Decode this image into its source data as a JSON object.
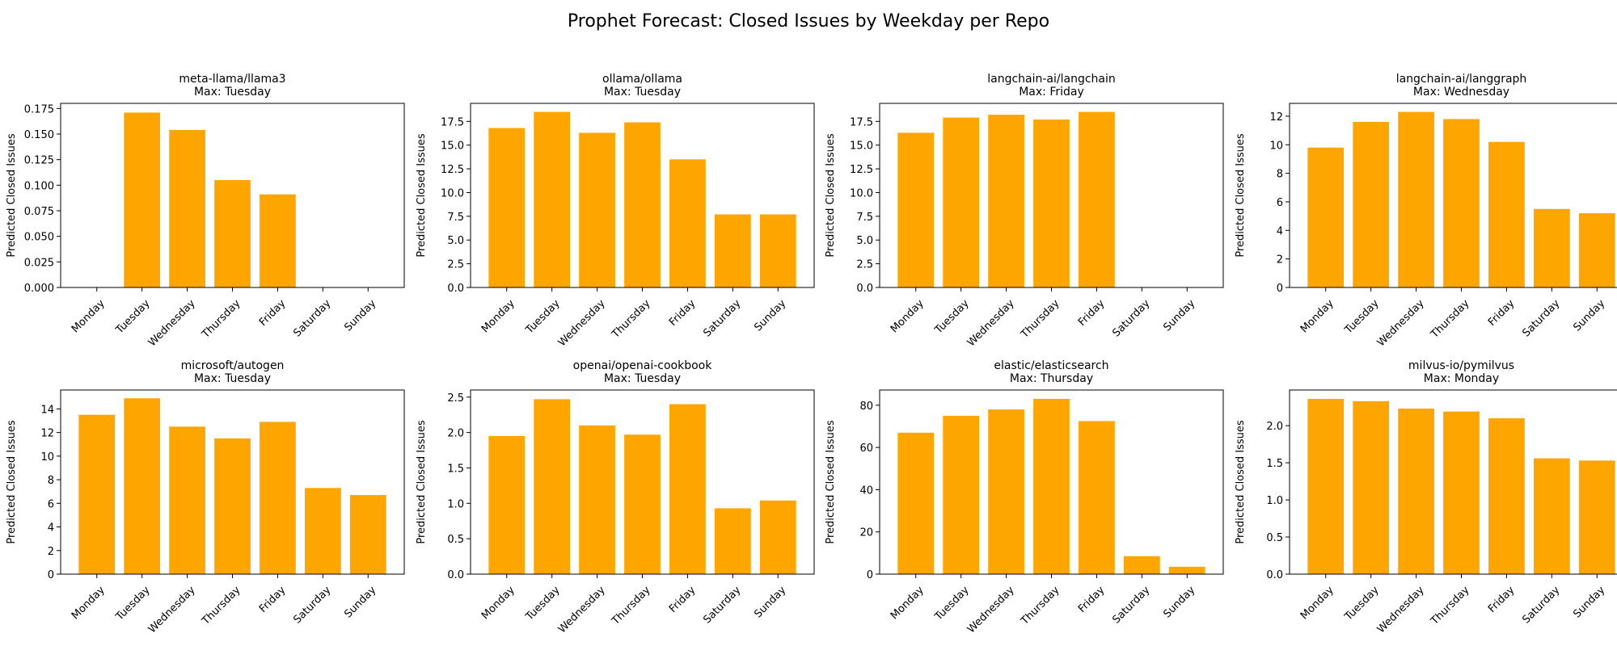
{
  "figure": {
    "title": "Prophet Forecast: Closed Issues by Weekday per Repo"
  },
  "chart_data": [
    {
      "type": "bar",
      "title": "meta-llama/llama3\nMax: Tuesday",
      "ylabel": "Predicted Closed Issues",
      "xlabel": "",
      "categories": [
        "Monday",
        "Tuesday",
        "Wednesday",
        "Thursday",
        "Friday",
        "Saturday",
        "Sunday"
      ],
      "values": [
        0,
        0.171,
        0.154,
        0.105,
        0.091,
        0,
        0
      ],
      "ylim": [
        0,
        0.18
      ],
      "yticks": [
        "0.000",
        "0.025",
        "0.050",
        "0.075",
        "0.100",
        "0.125",
        "0.150",
        "0.175"
      ],
      "color": "#ffa500"
    },
    {
      "type": "bar",
      "title": "ollama/ollama\nMax: Tuesday",
      "ylabel": "Predicted Closed Issues",
      "xlabel": "",
      "categories": [
        "Monday",
        "Tuesday",
        "Wednesday",
        "Thursday",
        "Friday",
        "Saturday",
        "Sunday"
      ],
      "values": [
        16.8,
        18.5,
        16.3,
        17.4,
        13.5,
        7.7,
        7.7
      ],
      "ylim": [
        0,
        19.4
      ],
      "yticks": [
        "0.0",
        "2.5",
        "5.0",
        "7.5",
        "10.0",
        "12.5",
        "15.0",
        "17.5"
      ],
      "color": "#ffa500"
    },
    {
      "type": "bar",
      "title": "langchain-ai/langchain\nMax: Friday",
      "ylabel": "Predicted Closed Issues",
      "xlabel": "",
      "categories": [
        "Monday",
        "Tuesday",
        "Wednesday",
        "Thursday",
        "Friday",
        "Saturday",
        "Sunday"
      ],
      "values": [
        16.3,
        17.9,
        18.2,
        17.7,
        18.5,
        0,
        0
      ],
      "ylim": [
        0,
        19.4
      ],
      "yticks": [
        "0.0",
        "2.5",
        "5.0",
        "7.5",
        "10.0",
        "12.5",
        "15.0",
        "17.5"
      ],
      "color": "#ffa500"
    },
    {
      "type": "bar",
      "title": "langchain-ai/langgraph\nMax: Wednesday",
      "ylabel": "Predicted Closed Issues",
      "xlabel": "",
      "categories": [
        "Monday",
        "Tuesday",
        "Wednesday",
        "Thursday",
        "Friday",
        "Saturday",
        "Sunday"
      ],
      "values": [
        9.8,
        11.6,
        12.3,
        11.8,
        10.2,
        5.5,
        5.2
      ],
      "ylim": [
        0,
        12.9
      ],
      "yticks": [
        "0",
        "2",
        "4",
        "6",
        "8",
        "10",
        "12"
      ],
      "color": "#ffa500"
    },
    {
      "type": "bar",
      "title": "microsoft/autogen\nMax: Tuesday",
      "ylabel": "Predicted Closed Issues",
      "xlabel": "",
      "categories": [
        "Monday",
        "Tuesday",
        "Wednesday",
        "Thursday",
        "Friday",
        "Saturday",
        "Sunday"
      ],
      "values": [
        13.5,
        14.9,
        12.5,
        11.5,
        12.9,
        7.3,
        6.7
      ],
      "ylim": [
        0,
        15.6
      ],
      "yticks": [
        "0",
        "2",
        "4",
        "6",
        "8",
        "10",
        "12",
        "14"
      ],
      "color": "#ffa500"
    },
    {
      "type": "bar",
      "title": "openai/openai-cookbook\nMax: Tuesday",
      "ylabel": "Predicted Closed Issues",
      "xlabel": "",
      "categories": [
        "Monday",
        "Tuesday",
        "Wednesday",
        "Thursday",
        "Friday",
        "Saturday",
        "Sunday"
      ],
      "values": [
        1.95,
        2.47,
        2.1,
        1.97,
        2.4,
        0.93,
        1.04
      ],
      "ylim": [
        0,
        2.6
      ],
      "yticks": [
        "0.0",
        "0.5",
        "1.0",
        "1.5",
        "2.0",
        "2.5"
      ],
      "color": "#ffa500"
    },
    {
      "type": "bar",
      "title": "elastic/elasticsearch\nMax: Thursday",
      "ylabel": "Predicted Closed Issues",
      "xlabel": "",
      "categories": [
        "Monday",
        "Tuesday",
        "Wednesday",
        "Thursday",
        "Friday",
        "Saturday",
        "Sunday"
      ],
      "values": [
        67,
        75,
        78,
        83,
        72.5,
        8.5,
        3.5
      ],
      "ylim": [
        0,
        87.2
      ],
      "yticks": [
        "0",
        "20",
        "40",
        "60",
        "80"
      ],
      "color": "#ffa500"
    },
    {
      "type": "bar",
      "title": "milvus-io/pymilvus\nMax: Monday",
      "ylabel": "Predicted Closed Issues",
      "xlabel": "",
      "categories": [
        "Monday",
        "Tuesday",
        "Wednesday",
        "Thursday",
        "Friday",
        "Saturday",
        "Sunday"
      ],
      "values": [
        2.36,
        2.33,
        2.23,
        2.19,
        2.1,
        1.56,
        1.53
      ],
      "ylim": [
        0,
        2.48
      ],
      "yticks": [
        "0.0",
        "0.5",
        "1.0",
        "1.5",
        "2.0"
      ],
      "color": "#ffa500"
    }
  ]
}
